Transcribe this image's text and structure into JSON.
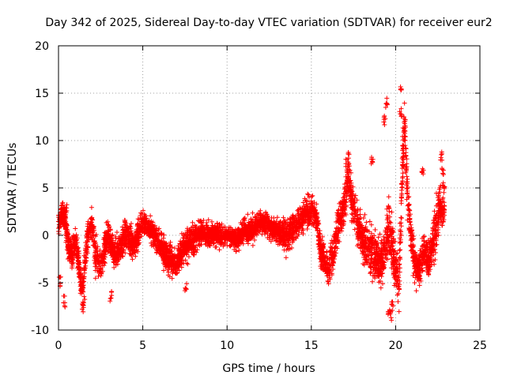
{
  "chart_data": {
    "type": "scatter",
    "title": "Day 342 of 2025, Sidereal Day-to-day VTEC variation (SDTVAR) for receiver eur2",
    "xlabel": "GPS time / hours",
    "ylabel": "SDTVAR / TECUs",
    "xlim": [
      0,
      25
    ],
    "ylim": [
      -10,
      20
    ],
    "xticks": [
      0,
      5,
      10,
      15,
      20,
      25
    ],
    "yticks": [
      -10,
      -5,
      0,
      5,
      10,
      15,
      20
    ],
    "grid": true,
    "marker": "+",
    "color": "#ff0000",
    "series": [
      {
        "name": "SDTVAR",
        "trend": {
          "x": [
            0,
            0.2,
            0.4,
            0.6,
            0.8,
            1.0,
            1.2,
            1.4,
            1.6,
            1.8,
            2.0,
            2.2,
            2.5,
            2.8,
            3.0,
            3.3,
            3.6,
            4.0,
            4.5,
            5.0,
            5.5,
            6.0,
            6.5,
            7.0,
            7.5,
            8.0,
            8.5,
            9.0,
            9.5,
            10.0,
            10.5,
            11.0,
            11.5,
            12.0,
            12.5,
            13.0,
            13.5,
            14.0,
            14.5,
            15.0,
            15.3,
            15.6,
            16.0,
            16.3,
            16.6,
            16.9,
            17.2,
            17.5,
            17.8,
            18.1,
            18.4,
            18.7,
            19.0,
            19.3,
            19.6,
            19.9,
            20.2,
            20.5,
            20.8,
            21.1,
            21.4,
            21.7,
            22.0,
            22.3,
            22.6,
            22.9
          ],
          "y": [
            1.0,
            2.5,
            1.5,
            -1.5,
            -2.0,
            -0.5,
            -3.0,
            -6.0,
            -2.0,
            0.5,
            1.0,
            -2.0,
            -3.5,
            -1.0,
            0.0,
            -2.0,
            -1.5,
            0.0,
            -1.0,
            1.5,
            0.5,
            -1.0,
            -2.5,
            -3.0,
            -1.0,
            -0.5,
            0.5,
            0.0,
            0.0,
            0.0,
            -0.5,
            0.5,
            0.5,
            1.5,
            1.0,
            0.5,
            0.0,
            1.0,
            2.0,
            3.0,
            2.0,
            -2.0,
            -3.5,
            -2.0,
            1.0,
            3.0,
            6.0,
            3.0,
            1.0,
            -0.5,
            -1.5,
            -2.0,
            -3.0,
            -2.5,
            1.0,
            -2.5,
            -5.0,
            12.0,
            2.0,
            -3.0,
            -3.5,
            -1.5,
            -2.5,
            0.0,
            3.0,
            2.5
          ],
          "spread": [
            1.5,
            1.5,
            1.5,
            2.0,
            2.0,
            2.0,
            2.0,
            1.5,
            2.0,
            2.0,
            2.0,
            2.5,
            2.5,
            2.0,
            2.0,
            2.0,
            2.0,
            2.0,
            2.0,
            1.5,
            1.5,
            2.0,
            2.0,
            2.0,
            2.0,
            2.0,
            1.5,
            1.5,
            1.5,
            1.0,
            1.5,
            1.5,
            1.5,
            1.5,
            1.5,
            1.5,
            2.0,
            2.0,
            2.0,
            2.0,
            2.0,
            2.0,
            2.0,
            2.5,
            2.5,
            2.5,
            3.0,
            3.0,
            3.0,
            3.0,
            3.0,
            3.0,
            3.0,
            3.0,
            3.5,
            3.5,
            4.0,
            4.0,
            3.0,
            2.5,
            2.5,
            2.5,
            2.5,
            3.0,
            3.0,
            2.5
          ]
        },
        "extremes": {
          "x": [
            0.1,
            0.35,
            0.45,
            1.45,
            1.5,
            3.1,
            7.55,
            17.1,
            17.2,
            18.6,
            19.35,
            19.45,
            19.6,
            19.7,
            19.8,
            20.3,
            20.35,
            20.45,
            21.6,
            22.7,
            22.8,
            22.85
          ],
          "y": [
            -4.8,
            -7.0,
            3.0,
            -7.5,
            -7.0,
            -6.5,
            -5.5,
            7.5,
            8.0,
            8.0,
            12.0,
            14.0,
            -8.0,
            -8.5,
            -7.5,
            13.0,
            15.5,
            9.5,
            6.5,
            8.5,
            7.0,
            5.0
          ]
        },
        "point_count": 5200,
        "seed": 342
      }
    ]
  }
}
